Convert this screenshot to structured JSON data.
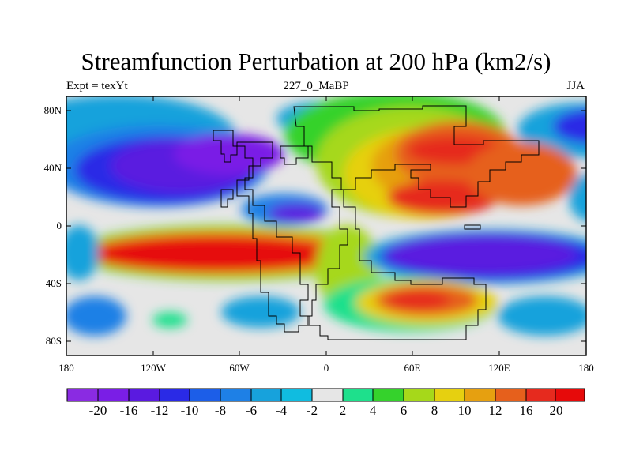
{
  "header": {
    "title": "Streamfunction Perturbation at 200 hPa (km2/s)",
    "left": "Expt = texYt",
    "center": "227_0_MaBP",
    "right": "JJA"
  },
  "map": {
    "projection": "cylindrical equidistant",
    "lon_range": [
      -180,
      180
    ],
    "lat_range": [
      -90,
      90
    ],
    "lat_ticks": [
      "80N",
      "40N",
      "0",
      "40S",
      "80S"
    ],
    "lon_ticks": [
      "180",
      "120W",
      "60W",
      "0",
      "60E",
      "120E",
      "180"
    ],
    "field_description": "Filled contours of 200 hPa streamfunction perturbation over paleogeographic coastline outlines"
  },
  "colorbar": {
    "labels": [
      "-20",
      "-16",
      "-12",
      "-10",
      "-8",
      "-6",
      "-4",
      "-2",
      "2",
      "4",
      "6",
      "8",
      "10",
      "12",
      "16",
      "20"
    ],
    "colors": [
      "#8a2be2",
      "#7a1ee6",
      "#5a1ae0",
      "#2a2ae6",
      "#1c5ee8",
      "#1e80e6",
      "#17a2dc",
      "#10bce0",
      "#e6e6e6",
      "#1ee08c",
      "#35d22c",
      "#a6d81a",
      "#e6d010",
      "#e6a010",
      "#e6601c",
      "#e62a1e",
      "#e60a0a"
    ]
  }
}
